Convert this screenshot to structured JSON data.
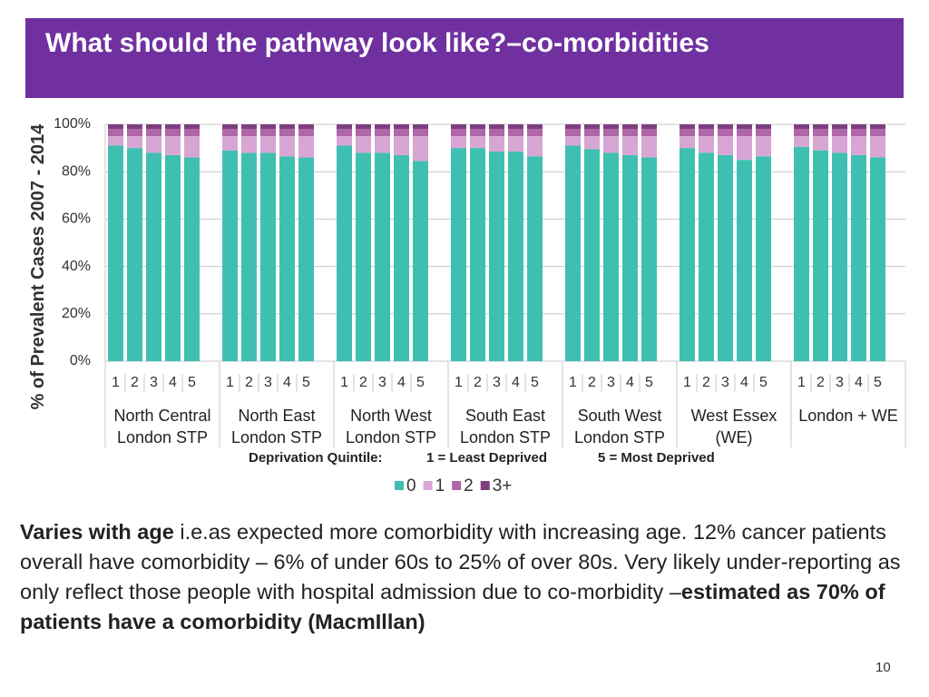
{
  "header": {
    "title": "What should the pathway look like?–co-morbidities"
  },
  "chart_data": {
    "type": "stacked-bar",
    "y_label": "% of Prevalent Cases 2007 - 2014",
    "categories": [
      "1",
      "2",
      "3",
      "4",
      "5",
      "1",
      "2",
      "3",
      "4",
      "5",
      "1",
      "2",
      "3",
      "4",
      "5",
      "1",
      "2",
      "3",
      "4",
      "5",
      "1",
      "2",
      "3",
      "4",
      "5",
      "1",
      "2",
      "3",
      "4",
      "5",
      "1",
      "2",
      "3",
      "4",
      "5"
    ],
    "groups": [
      "North Central London STP",
      "North East London STP",
      "North West London STP",
      "South East London STP",
      "South West London STP",
      "West Essex (WE)",
      "London + WE"
    ],
    "annotations": [
      "Deprivation Quintile:",
      "1 = Least Deprived",
      "5 = Most Deprived"
    ],
    "series": [
      {
        "name": "0",
        "color": "#3fbfb2",
        "values": [
          91,
          90,
          88,
          87,
          86,
          89,
          88,
          88,
          86.5,
          86,
          91,
          88,
          88,
          87,
          84.5,
          90,
          90,
          88.5,
          88.5,
          86.5,
          91,
          89.5,
          88,
          87,
          86,
          90,
          88,
          87,
          85,
          86.5,
          90.5,
          89,
          88,
          87,
          86
        ]
      },
      {
        "name": "1",
        "color": "#d7a6d5",
        "values": [
          4,
          5,
          7,
          8,
          9,
          6,
          7,
          7,
          8.5,
          9,
          4,
          7,
          7,
          8,
          10.5,
          5,
          5,
          6.5,
          6.5,
          8.5,
          4,
          5.5,
          7,
          8,
          9,
          5,
          7,
          8,
          10,
          8.5,
          4.5,
          6,
          7,
          8,
          9
        ]
      },
      {
        "name": "2",
        "color": "#b065a9",
        "values": [
          3,
          3,
          3,
          3,
          3,
          3,
          3,
          3,
          3,
          3,
          3,
          3,
          3,
          3,
          3,
          3,
          3,
          3,
          3,
          3,
          3,
          3,
          3,
          3,
          3,
          3,
          3,
          3,
          3,
          3,
          3,
          3,
          3,
          3,
          3
        ]
      },
      {
        "name": "3+",
        "color": "#7d3f80",
        "values": [
          2,
          2,
          2,
          2,
          2,
          2,
          2,
          2,
          2,
          2,
          2,
          2,
          2,
          2,
          2,
          2,
          2,
          2,
          2,
          2,
          2,
          2,
          2,
          2,
          2,
          2,
          2,
          2,
          2,
          2,
          2,
          2,
          2,
          2,
          2
        ]
      }
    ],
    "ylim": [
      0,
      100
    ],
    "yticks": [
      {
        "value": 0,
        "label": "0%"
      },
      {
        "value": 20,
        "label": "20%"
      },
      {
        "value": 40,
        "label": "40%"
      },
      {
        "value": 60,
        "label": "60%"
      },
      {
        "value": 80,
        "label": "80%"
      },
      {
        "value": 100,
        "label": "100%"
      }
    ],
    "grid": true
  },
  "body": {
    "parts": [
      "Varies with age",
      " i.e.as expected more comorbidity with increasing age.  12% cancer patients overall have comorbidity – 6% of under 60s to 25% of over 80s. Very likely under-reporting as only reflect those people with hospital admission due to co-morbidity –",
      "estimated as 70% of patients have a comorbidity (MacmIllan)"
    ]
  },
  "page_number": "10"
}
